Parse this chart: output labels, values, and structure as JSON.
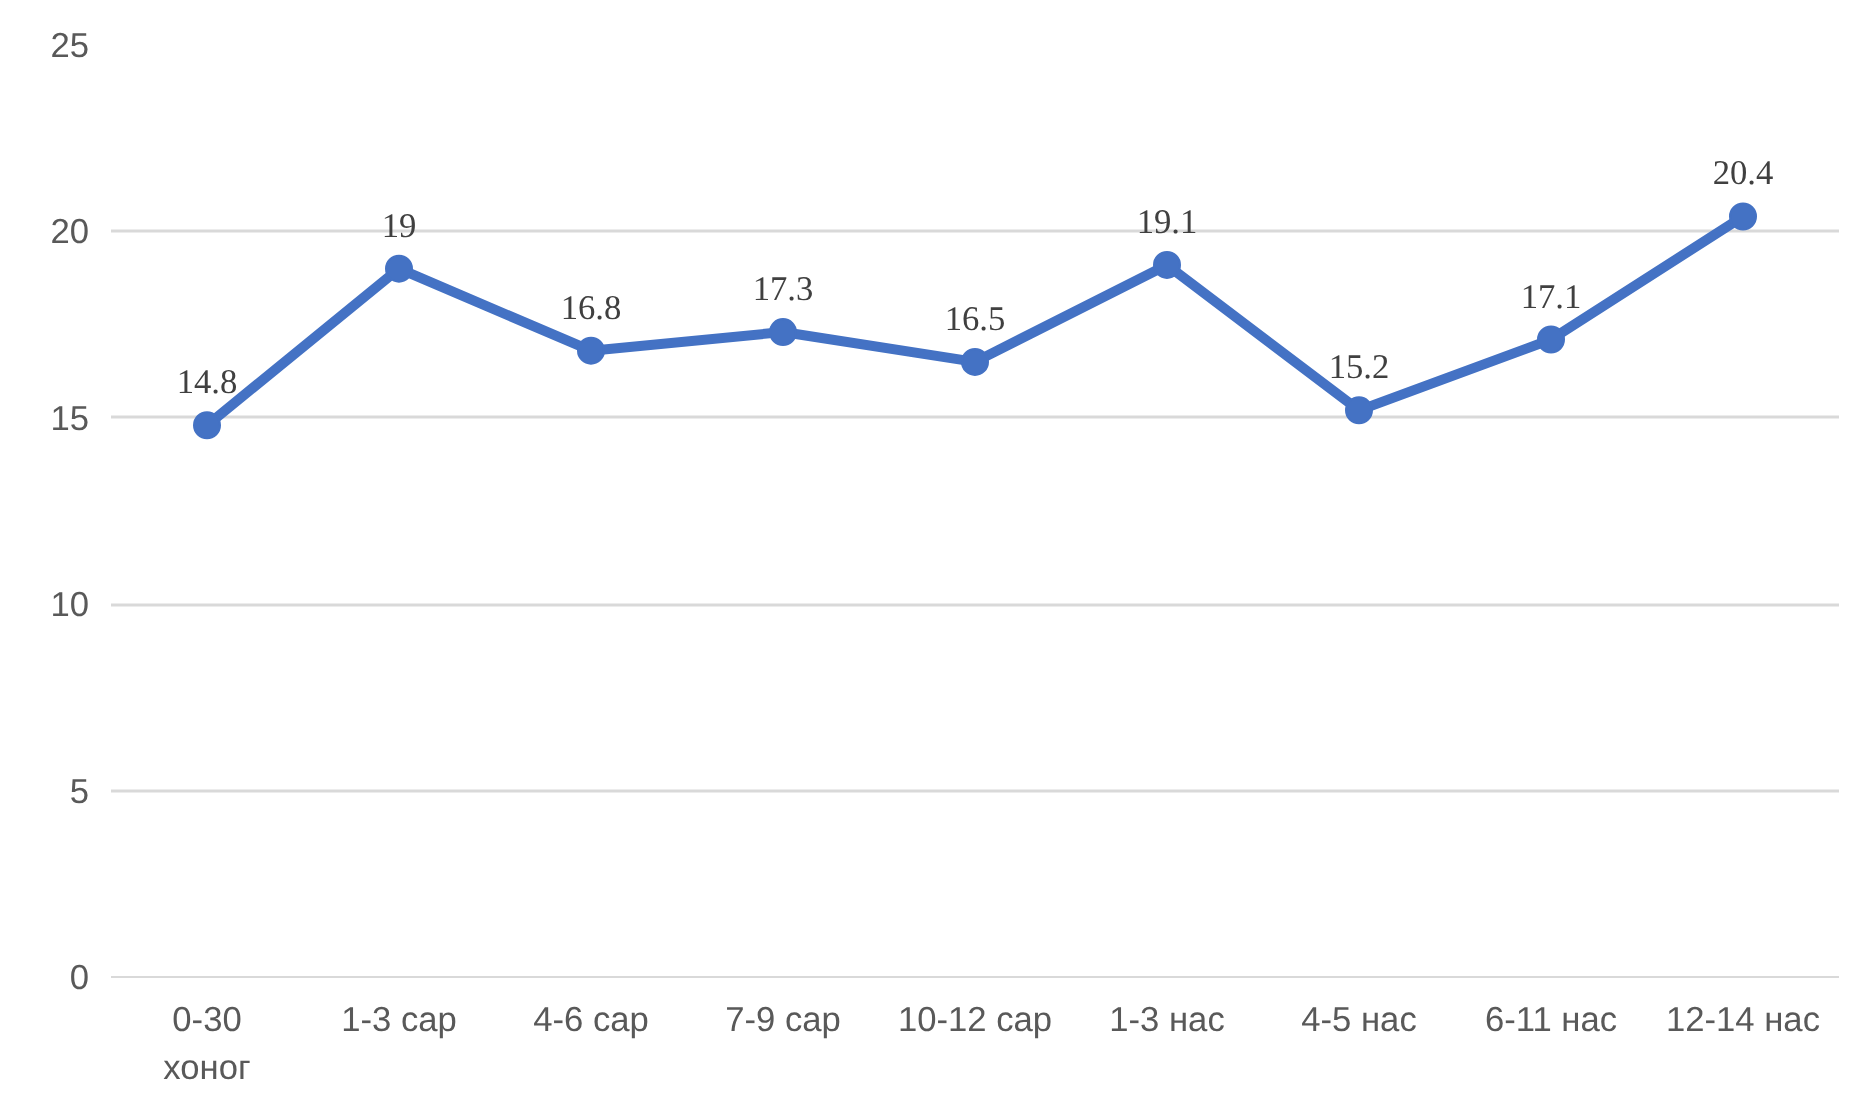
{
  "chart_data": {
    "type": "line",
    "categories": [
      "0-30\nхоног",
      "1-3 сар",
      "4-6 сар",
      "7-9 сар",
      "10-12 сар",
      "1-3 нас",
      "4-5 нас",
      "6-11 нас",
      "12-14 нас"
    ],
    "series": [
      {
        "color": "#4472c4",
        "values": [
          14.8,
          19,
          16.8,
          17.3,
          16.5,
          19.1,
          15.2,
          17.1,
          20.4
        ]
      }
    ],
    "ylim": [
      0,
      25
    ],
    "yticks": [
      0,
      5,
      10,
      15,
      20,
      25
    ],
    "grid": "y",
    "marker": "circle",
    "line_style": "solid",
    "data_labels": true
  }
}
